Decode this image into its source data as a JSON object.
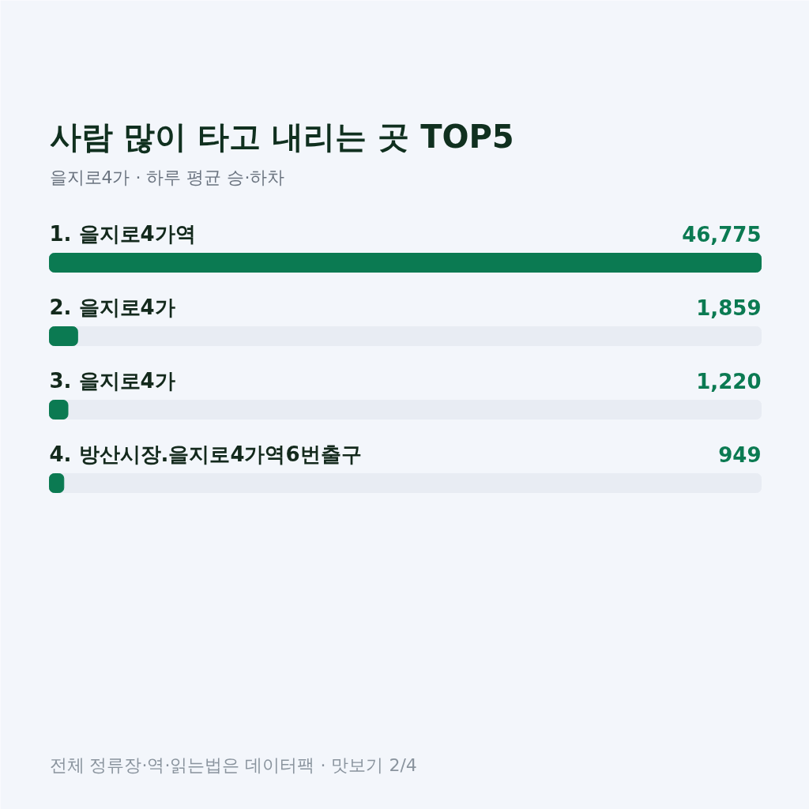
{
  "chart_data": {
    "type": "bar",
    "orientation": "horizontal",
    "title": "사람 많이 타고 내리는 곳 TOP5",
    "subtitle": "을지로4가 · 하루 평균 승·하차",
    "categories": [
      "1. 을지로4가역",
      "2. 을지로4가",
      "3. 을지로4가",
      "4. 방산시장.을지로4가역6번출구"
    ],
    "values": [
      46775,
      1859,
      1220,
      949
    ],
    "value_labels": [
      "46,775",
      "1,859",
      "1,220",
      "949"
    ],
    "color": "#0b7a52",
    "annotations": [
      "전체 정류장·역·읽는법은 데이터팩 · 맛보기 2/4"
    ]
  }
}
